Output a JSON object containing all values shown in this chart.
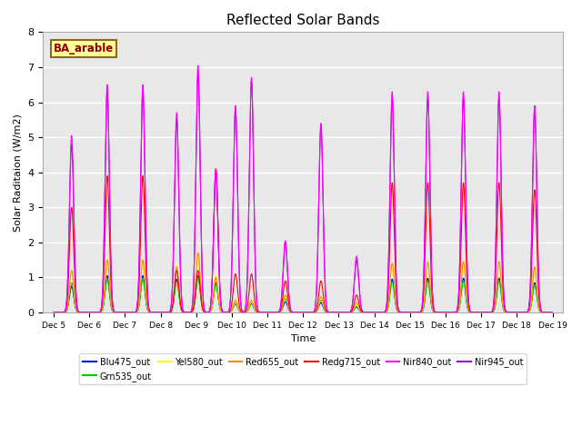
{
  "title": "Reflected Solar Bands",
  "xlabel": "Time",
  "ylabel": "Solar Raditaion (W/m2)",
  "ylim": [
    0,
    8.0
  ],
  "yticks": [
    0.0,
    1.0,
    2.0,
    3.0,
    4.0,
    5.0,
    6.0,
    7.0,
    8.0
  ],
  "annotation_text": "BA_arable",
  "annotation_color": "#8B0000",
  "annotation_bg": "#FFFF99",
  "annotation_border": "#8B6914",
  "series": [
    {
      "label": "Blu475_out",
      "color": "#0000FF"
    },
    {
      "label": "Grn535_out",
      "color": "#00CC00"
    },
    {
      "label": "Yel580_out",
      "color": "#FFFF00"
    },
    {
      "label": "Red655_out",
      "color": "#FF8C00"
    },
    {
      "label": "Redg715_out",
      "color": "#FF0000"
    },
    {
      "label": "Nir840_out",
      "color": "#FF00FF"
    },
    {
      "label": "Nir945_out",
      "color": "#9900CC"
    }
  ],
  "xtick_labels": [
    "Dec 5",
    "Dec 6",
    "Dec 7",
    "Dec 8",
    "Dec 9",
    "Dec 10",
    "Dec 11",
    "Dec 12",
    "Dec 13",
    "Dec 14",
    "Dec 15",
    "Dec 16",
    "Dec 17",
    "Dec 18",
    "Dec 19"
  ],
  "background_color": "#E8E8E8",
  "grid_color": "#FFFFFF",
  "n_points": 4200
}
